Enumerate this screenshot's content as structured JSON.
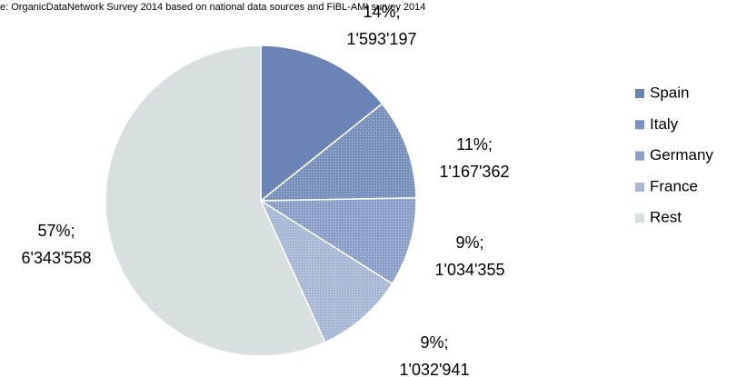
{
  "chart_data": {
    "type": "pie",
    "title": "e: OrganicDataNetwork Survey 2014 based on national data sources and FiBL-AMI survey 2014",
    "categories": [
      "Spain",
      "Italy",
      "Germany",
      "France",
      "Rest"
    ],
    "values": [
      1593197,
      1167362,
      1034355,
      1032941,
      6343558
    ],
    "value_labels": [
      [
        "14%;",
        "1'593'197"
      ],
      [
        "11%;",
        "1'167'362"
      ],
      [
        "9%;",
        "1'034'355"
      ],
      [
        "9%;",
        "1'032'941"
      ],
      [
        "57%;",
        "6'343'558"
      ]
    ],
    "colors": [
      "#6a84b5",
      "#7890bd",
      "#8aa0c8",
      "#a6b8d6",
      "#d7e0df"
    ],
    "legend": "right"
  }
}
